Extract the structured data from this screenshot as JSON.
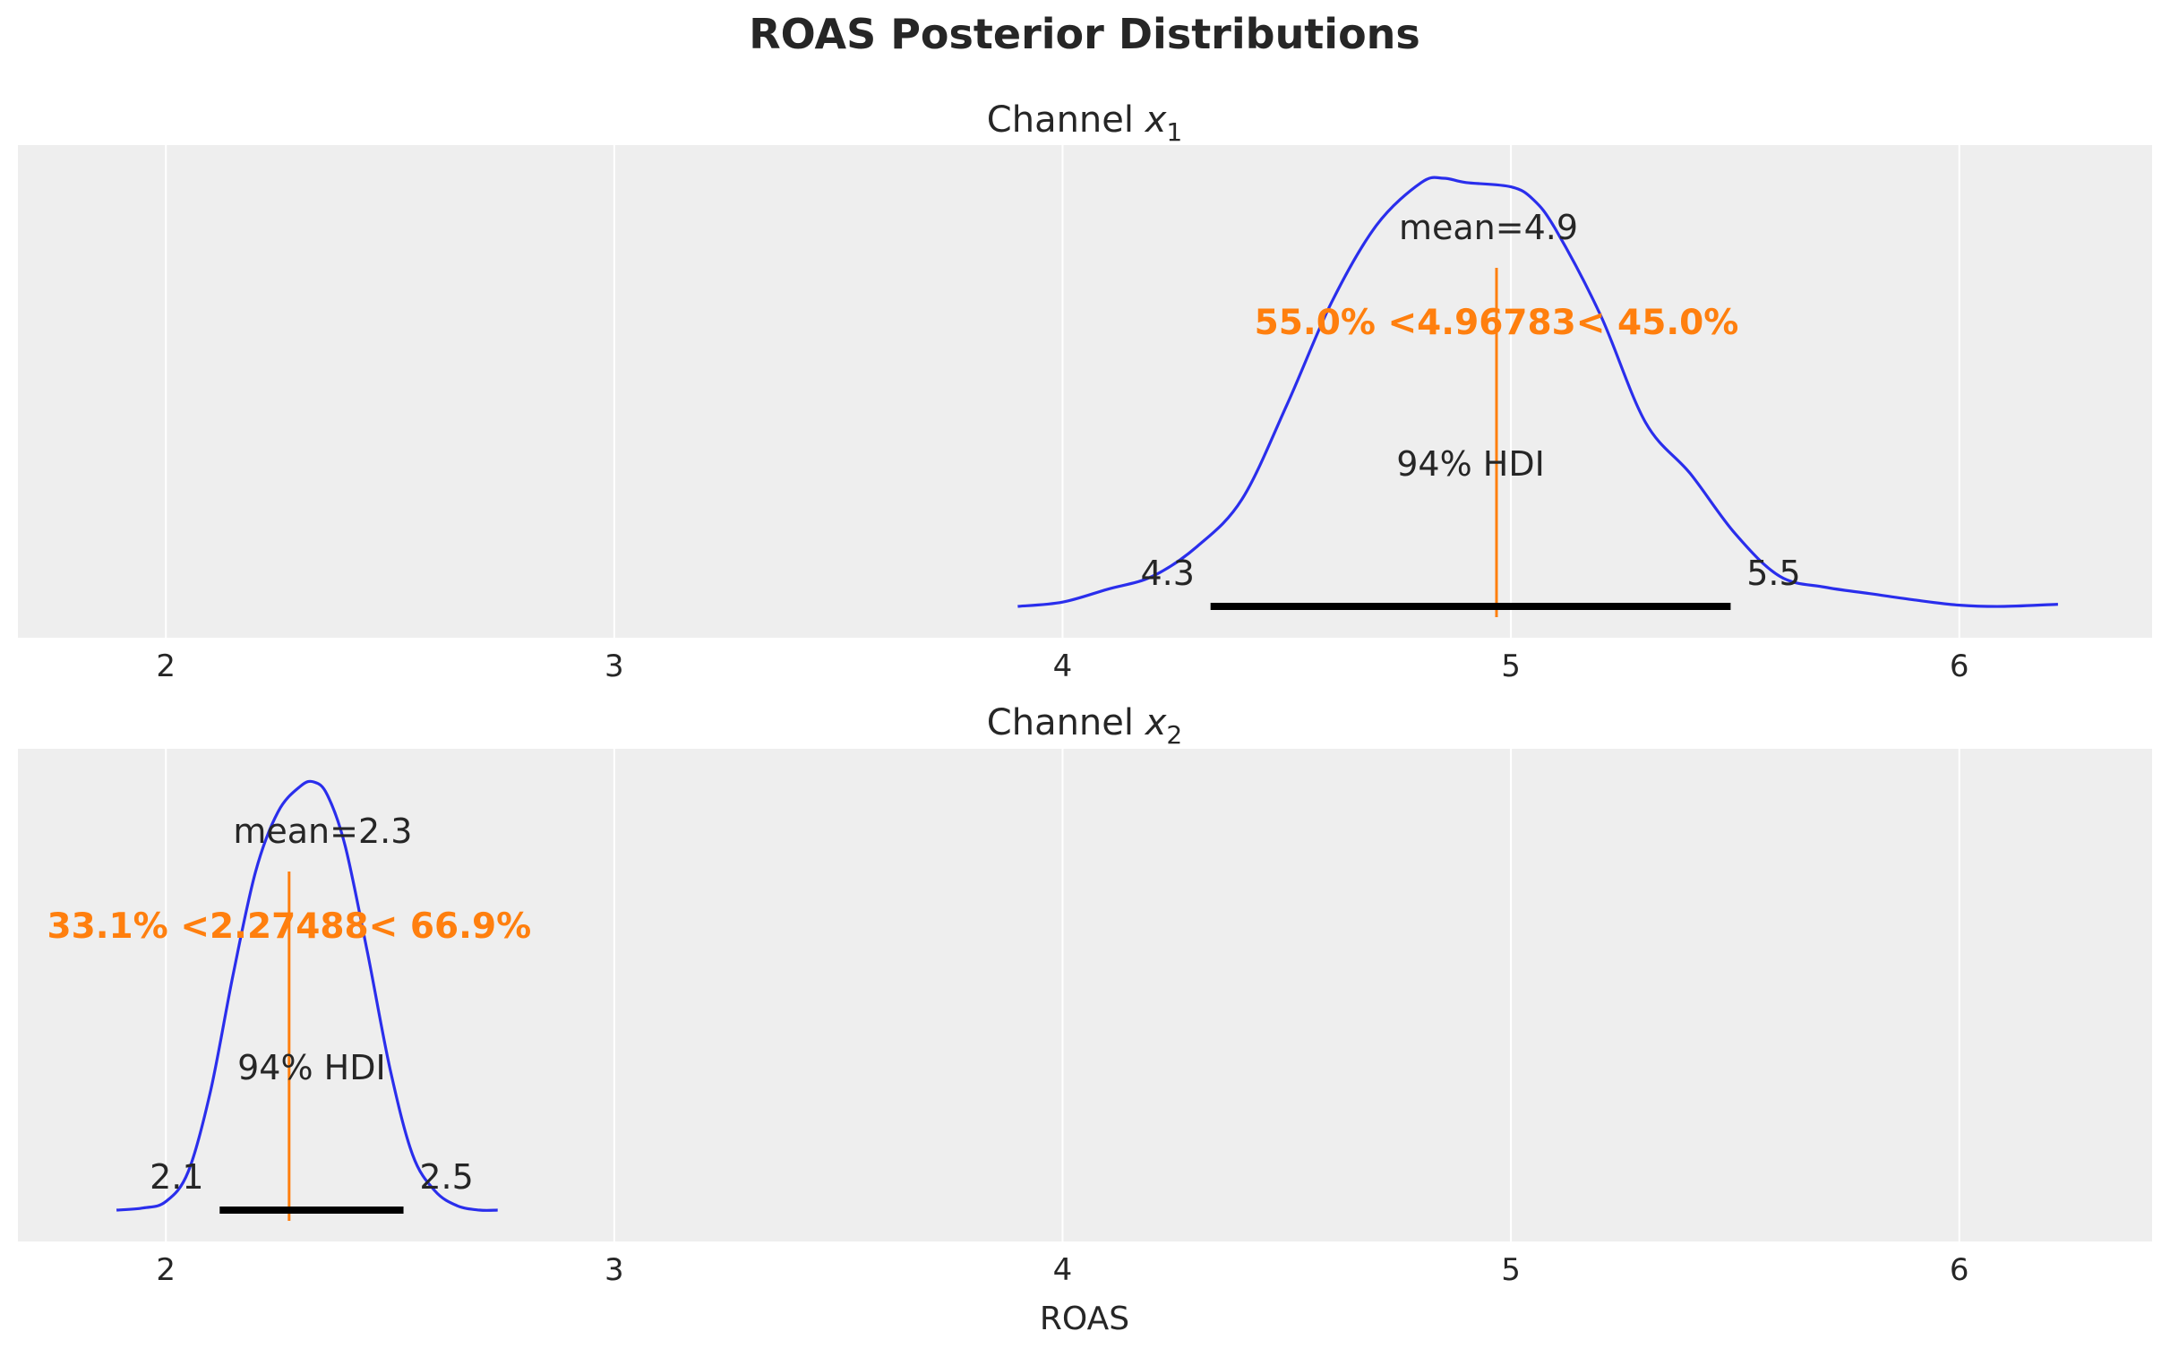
{
  "figure": {
    "title": "ROAS Posterior Distributions",
    "xlabel": "ROAS"
  },
  "chart_data": [
    {
      "type": "line",
      "title_prefix": "Channel ",
      "title_var": "x",
      "title_sub": "1",
      "xlim": [
        1.67,
        6.43
      ],
      "xticks": [
        2,
        3,
        4,
        5,
        6
      ],
      "xtick_labels": [
        "2",
        "3",
        "4",
        "5",
        "6"
      ],
      "grid": true,
      "density_color": "#2a2eec",
      "ref_color": "#ff7f0e",
      "density": {
        "x": [
          3.9,
          4.0,
          4.1,
          4.2,
          4.3,
          4.4,
          4.5,
          4.6,
          4.7,
          4.8,
          4.85,
          4.9,
          5.0,
          5.05,
          5.1,
          5.2,
          5.3,
          5.4,
          5.5,
          5.6,
          5.7,
          5.8,
          5.9,
          6.0,
          6.1,
          6.22
        ],
        "y": [
          0.0,
          0.01,
          0.04,
          0.07,
          0.14,
          0.25,
          0.47,
          0.71,
          0.89,
          0.99,
          1.0,
          0.99,
          0.98,
          0.95,
          0.88,
          0.68,
          0.43,
          0.31,
          0.17,
          0.07,
          0.045,
          0.03,
          0.015,
          0.003,
          0.0,
          0.005
        ]
      },
      "mean_text": "mean=4.9",
      "mean": 4.9,
      "hdi_text": "94% HDI",
      "hdi": [
        4.33,
        5.49
      ],
      "hdi_low_label": "4.3",
      "hdi_high_label": "5.5",
      "ref_val": 4.96783,
      "ref_text": "55.0% <4.96783< 45.0%"
    },
    {
      "type": "line",
      "title_prefix": "Channel ",
      "title_var": "x",
      "title_sub": "2",
      "xlim": [
        1.67,
        6.43
      ],
      "xticks": [
        2,
        3,
        4,
        5,
        6
      ],
      "xtick_labels": [
        "2",
        "3",
        "4",
        "5",
        "6"
      ],
      "grid": true,
      "density_color": "#2a2eec",
      "ref_color": "#ff7f0e",
      "density": {
        "x": [
          1.89,
          1.95,
          2.0,
          2.05,
          2.1,
          2.15,
          2.2,
          2.25,
          2.3,
          2.33,
          2.36,
          2.4,
          2.45,
          2.5,
          2.55,
          2.6,
          2.65,
          2.7,
          2.74
        ],
        "y": [
          0.0,
          0.005,
          0.02,
          0.09,
          0.28,
          0.55,
          0.79,
          0.93,
          0.99,
          1.0,
          0.97,
          0.85,
          0.6,
          0.33,
          0.13,
          0.045,
          0.01,
          0.0,
          0.0
        ]
      },
      "mean_text": "mean=2.3",
      "mean": 2.3,
      "hdi_text": "94% HDI",
      "hdi": [
        2.12,
        2.53
      ],
      "hdi_low_label": "2.1",
      "hdi_high_label": "2.5",
      "ref_val": 2.27488,
      "ref_text": "33.1% <2.27488< 66.9%"
    }
  ]
}
